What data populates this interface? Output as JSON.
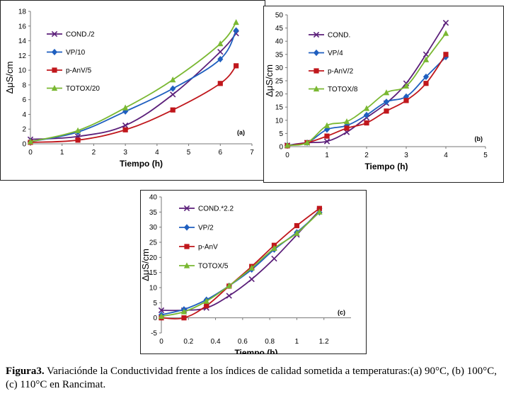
{
  "caption": {
    "label": "Figura3.",
    "text": " Variaciónde la Conductividad frente a los índices de calidad sometida a temperaturas:(a) 90°C, (b) 100°C, (c) 110°C en Rancimat."
  },
  "chart_data": [
    {
      "type": "line",
      "panel_label": "(a)",
      "xlabel": "Tiempo (h)",
      "ylabel": "ΔμS/cm",
      "xlim": [
        0,
        7
      ],
      "ylim": [
        0,
        18
      ],
      "xticks": [
        "0",
        "1",
        "2",
        "3",
        "4",
        "5",
        "6",
        "7"
      ],
      "yticks": [
        "0",
        "2",
        "4",
        "6",
        "8",
        "10",
        "12",
        "14",
        "16",
        "18"
      ],
      "legend_position": "left",
      "series": [
        {
          "name": "COND./2",
          "color": "#5b1f7a",
          "marker": "x",
          "x": [
            0,
            1.5,
            3,
            4.5,
            6,
            6.5
          ],
          "y": [
            0.6,
            1.0,
            2.5,
            6.7,
            12.5,
            15.0
          ]
        },
        {
          "name": "VP/10",
          "color": "#1f5fbf",
          "marker": "diamond",
          "x": [
            0,
            1.5,
            3,
            4.5,
            6,
            6.5
          ],
          "y": [
            0.3,
            1.6,
            4.4,
            7.5,
            11.5,
            15.4
          ]
        },
        {
          "name": "p-AnV/5",
          "color": "#c0171c",
          "marker": "square",
          "x": [
            0,
            1.5,
            3,
            4.5,
            6,
            6.5
          ],
          "y": [
            0.2,
            0.5,
            1.9,
            4.6,
            8.2,
            10.6
          ]
        },
        {
          "name": "TOTOX/20",
          "color": "#7ab832",
          "marker": "triangle",
          "x": [
            0,
            1.5,
            3,
            4.5,
            6,
            6.5
          ],
          "y": [
            0.3,
            1.8,
            4.9,
            8.7,
            13.6,
            16.5
          ]
        }
      ]
    },
    {
      "type": "line",
      "panel_label": "(b)",
      "xlabel": "Tiempo (h)",
      "ylabel": "ΔμS/cm",
      "xlim": [
        0,
        5
      ],
      "ylim": [
        0,
        50
      ],
      "xticks": [
        "0",
        "1",
        "2",
        "3",
        "4",
        "5"
      ],
      "yticks": [
        "0",
        "5",
        "10",
        "15",
        "20",
        "25",
        "30",
        "35",
        "40",
        "45",
        "50"
      ],
      "legend_position": "left",
      "series": [
        {
          "name": "COND.",
          "color": "#5b1f7a",
          "marker": "x",
          "x": [
            0,
            0.5,
            1,
            1.5,
            2,
            2.5,
            3,
            3.5,
            4
          ],
          "y": [
            0.5,
            1.5,
            2.0,
            5.5,
            11.0,
            16.5,
            24.0,
            35.0,
            47.0
          ]
        },
        {
          "name": "VP/4",
          "color": "#1f5fbf",
          "marker": "diamond",
          "x": [
            0,
            0.5,
            1,
            1.5,
            2,
            2.5,
            3,
            3.5,
            4
          ],
          "y": [
            0.5,
            1.5,
            6.5,
            8.0,
            12.0,
            17.0,
            19.0,
            26.5,
            34.0
          ]
        },
        {
          "name": "p-AnV/2",
          "color": "#c0171c",
          "marker": "square",
          "x": [
            0,
            0.5,
            1,
            1.5,
            2,
            2.5,
            3,
            3.5,
            4
          ],
          "y": [
            0.3,
            1.5,
            4.0,
            7.0,
            9.0,
            13.5,
            17.5,
            24.0,
            35.0
          ]
        },
        {
          "name": "TOTOX/8",
          "color": "#7ab832",
          "marker": "triangle",
          "x": [
            0,
            0.5,
            1,
            1.5,
            2,
            2.5,
            3,
            3.5,
            4
          ],
          "y": [
            0.5,
            1.5,
            8.0,
            9.5,
            14.5,
            20.5,
            23.0,
            33.0,
            43.0
          ]
        }
      ]
    },
    {
      "type": "line",
      "panel_label": "(c)",
      "xlabel": "Tiempo (h)",
      "ylabel": "ΔμS/cm",
      "xlim": [
        0,
        1.4
      ],
      "ylim": [
        -5,
        40
      ],
      "xticks": [
        "0",
        "0.2",
        "0.4",
        "0.6",
        "0.8",
        "1",
        "1.2"
      ],
      "yticks": [
        "-5",
        "0",
        "5",
        "10",
        "15",
        "20",
        "25",
        "30",
        "35",
        "40"
      ],
      "legend_position": "left",
      "series": [
        {
          "name": "COND.*2.2",
          "color": "#5b1f7a",
          "marker": "x",
          "x": [
            0,
            0.167,
            0.333,
            0.5,
            0.667,
            0.833,
            1.0,
            1.167
          ],
          "y": [
            2.5,
            2.5,
            3.3,
            7.3,
            12.8,
            19.6,
            27.5,
            35.5
          ]
        },
        {
          "name": "VP/2",
          "color": "#1f5fbf",
          "marker": "diamond",
          "x": [
            0,
            0.167,
            0.333,
            0.5,
            0.667,
            0.833,
            1.0,
            1.167
          ],
          "y": [
            1.0,
            2.8,
            6.0,
            10.6,
            16.0,
            22.6,
            28.3,
            34.9
          ]
        },
        {
          "name": "p-AnV",
          "color": "#c0171c",
          "marker": "square",
          "x": [
            0,
            0.167,
            0.333,
            0.5,
            0.667,
            0.833,
            1.0,
            1.167
          ],
          "y": [
            0.0,
            0.0,
            4.0,
            10.5,
            17.0,
            24.0,
            30.5,
            36.2
          ]
        },
        {
          "name": "TOTOX/5",
          "color": "#7ab832",
          "marker": "triangle",
          "x": [
            0,
            0.167,
            0.333,
            0.5,
            0.667,
            0.833,
            1.0,
            1.167
          ],
          "y": [
            0.5,
            2.0,
            5.5,
            10.6,
            16.5,
            23.0,
            28.0,
            35.0
          ]
        }
      ]
    }
  ]
}
